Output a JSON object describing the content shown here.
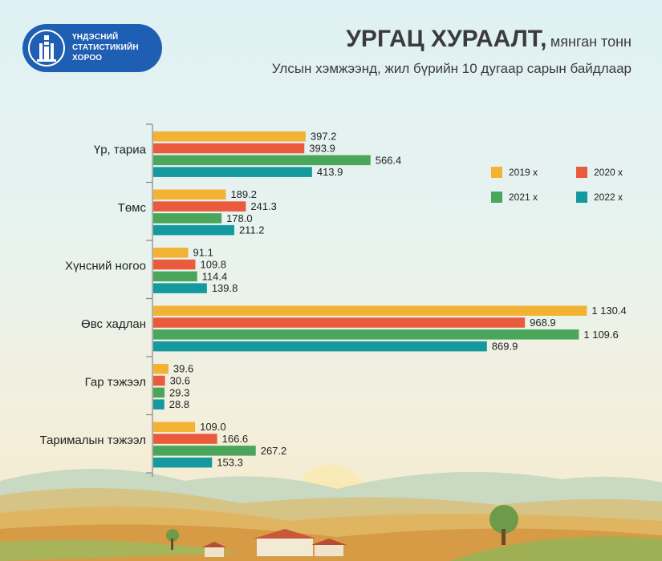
{
  "logo": {
    "lines": [
      "ҮНДЭСНИЙ",
      "СТАТИСТИКИЙН",
      "ХОРОО"
    ]
  },
  "header": {
    "title": "УРГАЦ ХУРААЛТ,",
    "unit": "мянган тонн",
    "subtitle": "Улсын хэмжээнд, жил бүрийн 10 дугаар сарын байдлаар"
  },
  "chart_data": {
    "type": "bar",
    "orientation": "horizontal",
    "categories": [
      "Үр, тариа",
      "Төмс",
      "Хүнсний ногоо",
      "Өвс хадлан",
      "Гар тэжээл",
      "Тарималын тэжээл"
    ],
    "series": [
      {
        "name": "2019 х",
        "color": "#f2b233",
        "values": [
          397.2,
          189.2,
          91.1,
          1130.4,
          39.6,
          109.0
        ],
        "labels": [
          "397.2",
          "189.2",
          "91.1",
          "1 130.4",
          "39.6",
          "109.0"
        ]
      },
      {
        "name": "2020 х",
        "color": "#ea5a3d",
        "values": [
          393.9,
          241.3,
          109.8,
          968.9,
          30.6,
          166.6
        ],
        "labels": [
          "393.9",
          "241.3",
          "109.8",
          "968.9",
          "30.6",
          "166.6"
        ]
      },
      {
        "name": "2021 х",
        "color": "#4aa65a",
        "values": [
          566.4,
          178.0,
          114.4,
          1109.6,
          29.3,
          267.2
        ],
        "labels": [
          "566.4",
          "178.0",
          "114.4",
          "1 109.6",
          "29.3",
          "267.2"
        ]
      },
      {
        "name": "2022 х",
        "color": "#14999f",
        "values": [
          413.9,
          211.2,
          139.8,
          869.9,
          28.8,
          153.3
        ],
        "labels": [
          "413.9",
          "211.2",
          "139.8",
          "869.9",
          "28.8",
          "153.3"
        ]
      }
    ],
    "xlim": [
      0,
      1150
    ],
    "legend": "top-right",
    "grid": false
  }
}
